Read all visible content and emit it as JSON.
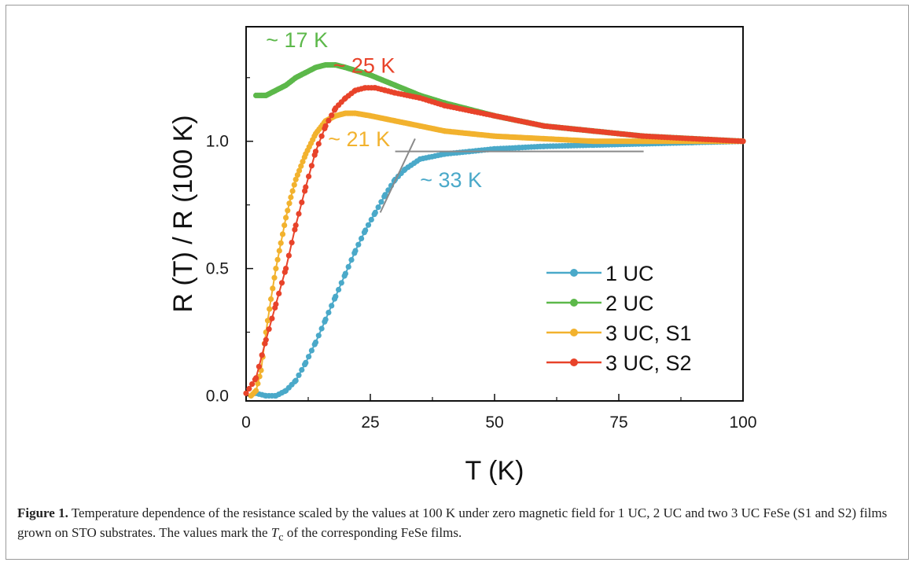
{
  "chart_data": {
    "type": "scatter",
    "xlabel": "T (K)",
    "ylabel": "R (T) / R (100 K)",
    "xlim": [
      0,
      100
    ],
    "ylim": [
      -0.02,
      1.45
    ],
    "xticks": [
      0,
      25,
      50,
      75,
      100
    ],
    "xtick_labels": [
      "0",
      "25",
      "50",
      "75",
      "100"
    ],
    "yticks": [
      0.0,
      0.5,
      1.0
    ],
    "ytick_labels": [
      "0.0",
      "0.5",
      "1.0"
    ],
    "legend_position": "bottom-right",
    "series": [
      {
        "name": "1 UC",
        "color": "#4aa9c9",
        "x": [
          2,
          4,
          6,
          8,
          10,
          12,
          14,
          16,
          18,
          20,
          22,
          24,
          26,
          28,
          30,
          32,
          35,
          40,
          45,
          50,
          55,
          60,
          70,
          80,
          90,
          100
        ],
        "y": [
          0.01,
          0.0,
          0.0,
          0.02,
          0.06,
          0.13,
          0.21,
          0.3,
          0.39,
          0.48,
          0.57,
          0.65,
          0.72,
          0.79,
          0.85,
          0.89,
          0.93,
          0.95,
          0.96,
          0.97,
          0.975,
          0.98,
          0.985,
          0.99,
          0.995,
          1.0
        ]
      },
      {
        "name": "2 UC",
        "color": "#5cb84a",
        "x": [
          2,
          4,
          6,
          8,
          10,
          12,
          14,
          16,
          18,
          20,
          25,
          30,
          35,
          40,
          50,
          60,
          70,
          80,
          90,
          100
        ],
        "y": [
          1.18,
          1.18,
          1.2,
          1.22,
          1.25,
          1.27,
          1.29,
          1.3,
          1.3,
          1.29,
          1.26,
          1.22,
          1.18,
          1.15,
          1.1,
          1.06,
          1.04,
          1.02,
          1.01,
          1.0
        ]
      },
      {
        "name": "3 UC, S1",
        "color": "#f2b22e",
        "x": [
          1,
          2,
          3,
          4,
          5,
          6,
          7,
          8,
          9,
          10,
          12,
          14,
          16,
          18,
          20,
          22,
          25,
          30,
          35,
          40,
          50,
          60,
          70,
          80,
          90,
          100
        ],
        "y": [
          0.0,
          0.02,
          0.1,
          0.25,
          0.38,
          0.5,
          0.6,
          0.7,
          0.78,
          0.85,
          0.95,
          1.03,
          1.08,
          1.1,
          1.11,
          1.11,
          1.1,
          1.08,
          1.06,
          1.04,
          1.02,
          1.01,
          1.0,
          1.0,
          1.0,
          1.0
        ]
      },
      {
        "name": "3 UC, S2",
        "color": "#e8432a",
        "x": [
          0,
          2,
          4,
          6,
          8,
          10,
          12,
          14,
          16,
          18,
          20,
          22,
          24,
          26,
          28,
          30,
          35,
          40,
          50,
          60,
          70,
          80,
          90,
          100
        ],
        "y": [
          0.01,
          0.07,
          0.22,
          0.36,
          0.5,
          0.67,
          0.82,
          0.96,
          1.06,
          1.13,
          1.17,
          1.2,
          1.21,
          1.21,
          1.2,
          1.19,
          1.17,
          1.14,
          1.1,
          1.06,
          1.04,
          1.02,
          1.01,
          1.0
        ]
      }
    ],
    "annotations": [
      {
        "text": "~ 17 K",
        "color": "#5cb84a",
        "x": 4,
        "y": 1.37
      },
      {
        "text": "~ 25 K",
        "color": "#e8432a",
        "x": 17.5,
        "y": 1.27
      },
      {
        "text": "~ 21 K",
        "color": "#f2b22e",
        "x": 16.5,
        "y": 0.98
      },
      {
        "text": "~ 33 K",
        "color": "#4aa9c9",
        "x": 35,
        "y": 0.82
      }
    ],
    "guide_lines": [
      {
        "color": "#8a8a8a",
        "x": [
          30,
          80
        ],
        "y": [
          0.96,
          0.96
        ]
      },
      {
        "color": "#8a8a8a",
        "x": [
          27,
          34
        ],
        "y": [
          0.72,
          1.01
        ]
      }
    ]
  },
  "caption": {
    "label": "Figure 1.",
    "text": "Temperature dependence of the resistance scaled by the values at 100 K under zero magnetic field for 1 UC, 2 UC and two 3 UC FeSe (S1 and S2) films grown on STO substrates. The values mark the ",
    "tc_main": "T",
    "tc_sub": "c",
    "text_end": " of the corresponding FeSe films."
  }
}
